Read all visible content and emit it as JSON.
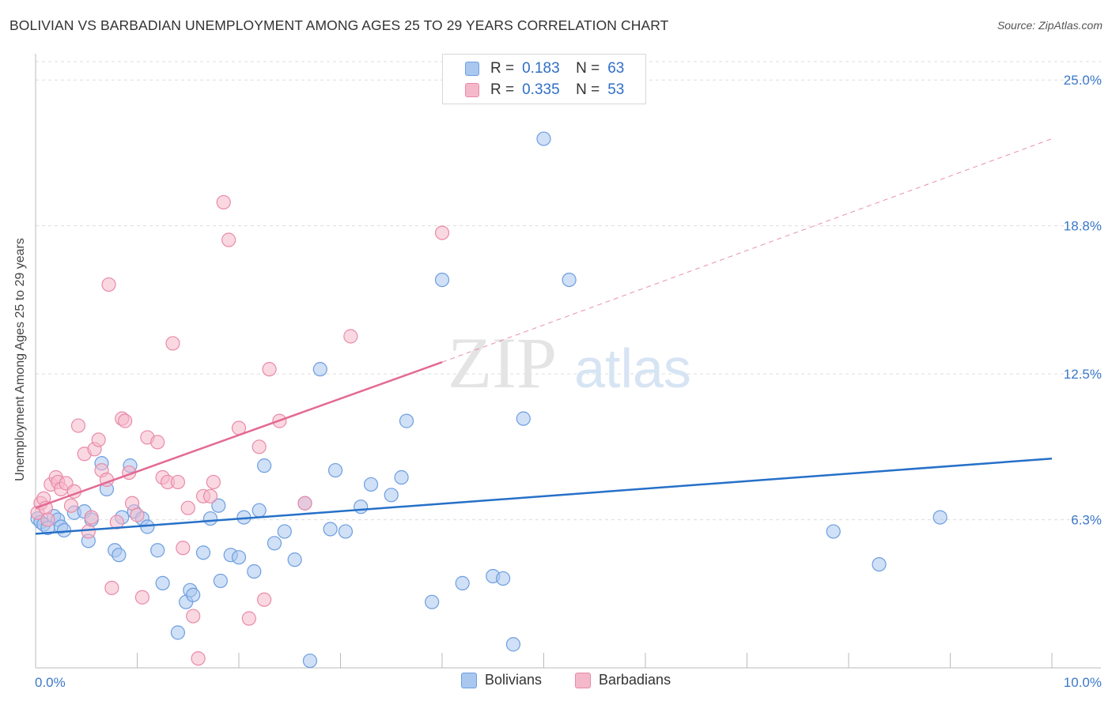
{
  "title": "BOLIVIAN VS BARBADIAN UNEMPLOYMENT AMONG AGES 25 TO 29 YEARS CORRELATION CHART",
  "source": "Source: ZipAtlas.com",
  "watermark": {
    "zip": "ZIP",
    "atlas": "atlas"
  },
  "legend": {
    "rows": [
      {
        "r_label": "R =",
        "r_value": "0.183",
        "n_label": "N =",
        "n_value": "63"
      },
      {
        "r_label": "R =",
        "r_value": "0.335",
        "n_label": "N =",
        "n_value": "53"
      }
    ]
  },
  "chart_data": {
    "type": "scatter",
    "title": "BOLIVIAN VS BARBADIAN UNEMPLOYMENT AMONG AGES 25 TO 29 YEARS CORRELATION CHART",
    "ylabel": "Unemployment Among Ages 25 to 29 years",
    "xlabel": "",
    "xlim": [
      0,
      10
    ],
    "ylim": [
      0,
      25.0
    ],
    "x_tick_labels": [
      "0.0%",
      "10.0%"
    ],
    "y_tick_labels": [
      "6.3%",
      "12.5%",
      "18.8%",
      "25.0%"
    ],
    "y_ticks": [
      6.3,
      12.5,
      18.8,
      25.0
    ],
    "grid": true,
    "legend_position": "top-center",
    "colors": {
      "Bolivians": {
        "fill": "#a9c7ef",
        "stroke": "#6d9ee0",
        "line": "#2670c8"
      },
      "Barbadians": {
        "fill": "#f5b8cb",
        "stroke": "#e98aa8",
        "line": "#e36a93"
      }
    },
    "series": [
      {
        "name": "Bolivians",
        "r": 0.183,
        "n": 63,
        "trend": {
          "x": [
            0,
            10
          ],
          "y": [
            5.7,
            8.9
          ]
        },
        "points": [
          [
            0.02,
            6.35
          ],
          [
            0.05,
            6.2
          ],
          [
            0.08,
            6.1
          ],
          [
            0.12,
            5.95
          ],
          [
            0.18,
            6.45
          ],
          [
            0.22,
            6.3
          ],
          [
            0.25,
            6.0
          ],
          [
            0.28,
            5.85
          ],
          [
            0.38,
            6.6
          ],
          [
            0.48,
            6.65
          ],
          [
            0.52,
            5.4
          ],
          [
            0.55,
            6.3
          ],
          [
            0.65,
            8.7
          ],
          [
            0.7,
            7.6
          ],
          [
            0.78,
            5.0
          ],
          [
            0.82,
            4.8
          ],
          [
            0.85,
            6.4
          ],
          [
            0.93,
            8.6
          ],
          [
            0.97,
            6.65
          ],
          [
            1.05,
            6.35
          ],
          [
            1.1,
            6.0
          ],
          [
            1.2,
            5.0
          ],
          [
            1.25,
            3.6
          ],
          [
            1.4,
            1.5
          ],
          [
            1.48,
            2.8
          ],
          [
            1.52,
            3.3
          ],
          [
            1.55,
            3.1
          ],
          [
            1.65,
            4.9
          ],
          [
            1.72,
            6.35
          ],
          [
            1.8,
            6.9
          ],
          [
            1.82,
            3.7
          ],
          [
            1.92,
            4.8
          ],
          [
            2.0,
            4.7
          ],
          [
            2.05,
            6.4
          ],
          [
            2.15,
            4.1
          ],
          [
            2.2,
            6.7
          ],
          [
            2.25,
            8.6
          ],
          [
            2.35,
            5.3
          ],
          [
            2.45,
            5.8
          ],
          [
            2.55,
            4.6
          ],
          [
            2.65,
            7.0
          ],
          [
            2.8,
            12.7
          ],
          [
            2.9,
            5.9
          ],
          [
            2.95,
            8.4
          ],
          [
            3.05,
            5.8
          ],
          [
            3.2,
            6.85
          ],
          [
            3.3,
            7.8
          ],
          [
            3.5,
            7.35
          ],
          [
            3.6,
            8.1
          ],
          [
            3.65,
            10.5
          ],
          [
            3.9,
            2.8
          ],
          [
            4.0,
            16.5
          ],
          [
            4.2,
            3.6
          ],
          [
            4.5,
            3.9
          ],
          [
            4.6,
            3.8
          ],
          [
            4.7,
            1.0
          ],
          [
            4.8,
            10.6
          ],
          [
            5.0,
            22.5
          ],
          [
            5.25,
            16.5
          ],
          [
            7.85,
            5.8
          ],
          [
            8.3,
            4.4
          ],
          [
            8.9,
            6.4
          ],
          [
            2.7,
            0.3
          ]
        ]
      },
      {
        "name": "Barbadians",
        "r": 0.335,
        "n": 53,
        "trend": {
          "x": [
            0,
            4.0
          ],
          "y": [
            6.8,
            13.0
          ]
        },
        "trend_extended": {
          "x": [
            4.0,
            10.0
          ],
          "y": [
            13.0,
            22.5
          ]
        },
        "points": [
          [
            0.02,
            6.6
          ],
          [
            0.05,
            7.0
          ],
          [
            0.08,
            7.2
          ],
          [
            0.1,
            6.8
          ],
          [
            0.12,
            6.3
          ],
          [
            0.15,
            7.8
          ],
          [
            0.2,
            8.1
          ],
          [
            0.22,
            7.9
          ],
          [
            0.25,
            7.6
          ],
          [
            0.3,
            7.85
          ],
          [
            0.35,
            6.9
          ],
          [
            0.38,
            7.5
          ],
          [
            0.42,
            10.3
          ],
          [
            0.48,
            9.1
          ],
          [
            0.52,
            5.8
          ],
          [
            0.55,
            6.4
          ],
          [
            0.58,
            9.3
          ],
          [
            0.62,
            9.7
          ],
          [
            0.65,
            8.4
          ],
          [
            0.7,
            8.0
          ],
          [
            0.72,
            16.3
          ],
          [
            0.75,
            3.4
          ],
          [
            0.8,
            6.2
          ],
          [
            0.85,
            10.6
          ],
          [
            0.88,
            10.5
          ],
          [
            0.92,
            8.3
          ],
          [
            0.95,
            7.0
          ],
          [
            1.0,
            6.5
          ],
          [
            1.05,
            3.0
          ],
          [
            1.1,
            9.8
          ],
          [
            1.2,
            9.6
          ],
          [
            1.25,
            8.1
          ],
          [
            1.3,
            7.9
          ],
          [
            1.35,
            13.8
          ],
          [
            1.4,
            7.9
          ],
          [
            1.45,
            5.1
          ],
          [
            1.5,
            6.8
          ],
          [
            1.55,
            2.2
          ],
          [
            1.6,
            0.4
          ],
          [
            1.65,
            7.3
          ],
          [
            1.72,
            7.3
          ],
          [
            1.75,
            7.9
          ],
          [
            1.85,
            19.8
          ],
          [
            1.9,
            18.2
          ],
          [
            2.0,
            10.2
          ],
          [
            2.1,
            2.1
          ],
          [
            2.2,
            9.4
          ],
          [
            2.25,
            2.9
          ],
          [
            2.3,
            12.7
          ],
          [
            2.4,
            10.5
          ],
          [
            2.65,
            7.0
          ],
          [
            3.1,
            14.1
          ],
          [
            4.0,
            18.5
          ]
        ]
      }
    ]
  }
}
